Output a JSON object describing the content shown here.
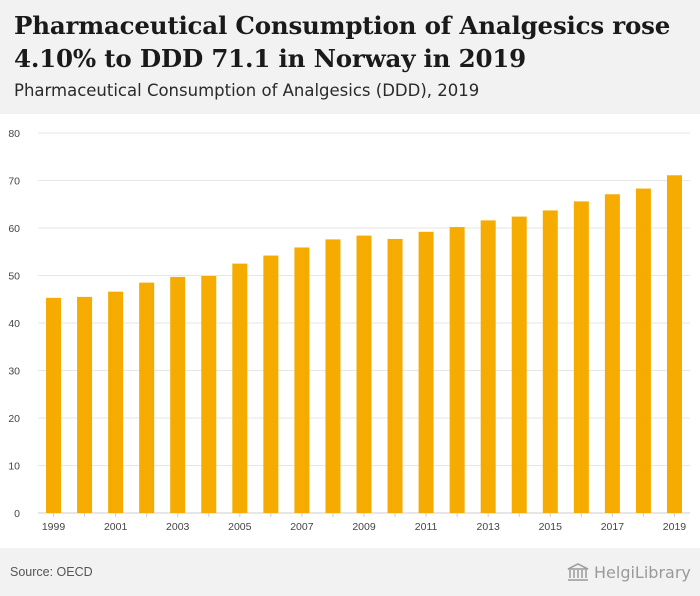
{
  "header": {
    "title": "Pharmaceutical Consumption of Analgesics rose 4.10% to DDD 71.1 in Norway in 2019",
    "subtitle": "Pharmaceutical Consumption of Analgesics (DDD), 2019"
  },
  "footer": {
    "source": "Source: OECD",
    "logo_text": "HelgiLibrary"
  },
  "colors": {
    "bar": "#f5ab00",
    "grid": "#e6e6e6",
    "tick_text": "#444444"
  },
  "chart_data": {
    "type": "bar",
    "categories": [
      "1999",
      "2000",
      "2001",
      "2002",
      "2003",
      "2004",
      "2005",
      "2006",
      "2007",
      "2008",
      "2009",
      "2010",
      "2011",
      "2012",
      "2013",
      "2014",
      "2015",
      "2016",
      "2017",
      "2018",
      "2019"
    ],
    "x_tick_labels": [
      "1999",
      "2001",
      "2003",
      "2005",
      "2007",
      "2009",
      "2011",
      "2013",
      "2015",
      "2017",
      "2019"
    ],
    "values": [
      45.3,
      45.5,
      46.6,
      48.5,
      49.7,
      49.9,
      52.5,
      54.2,
      55.9,
      57.6,
      58.4,
      57.7,
      59.2,
      60.2,
      61.6,
      62.4,
      63.7,
      65.6,
      67.1,
      68.3,
      71.1
    ],
    "y_ticks": [
      0,
      10,
      20,
      30,
      40,
      50,
      60,
      70,
      80
    ],
    "ylim": [
      0,
      80
    ],
    "grid": true
  }
}
